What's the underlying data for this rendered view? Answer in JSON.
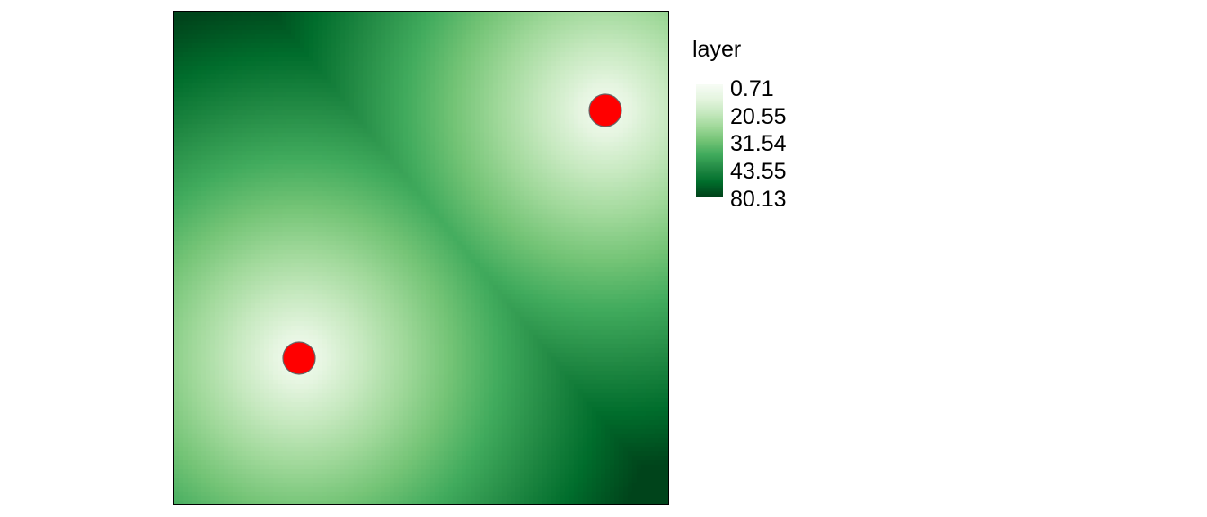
{
  "map": {
    "title": "",
    "layer_name": "layer",
    "color_scale": {
      "type": "continuous",
      "direction": "low value = light, high value = dark",
      "colors": [
        "#f7fcf5",
        "#e5f5e0",
        "#c7e9c0",
        "#a1d99b",
        "#74c476",
        "#41ab5d",
        "#238b45",
        "#006d2c",
        "#00441b"
      ]
    },
    "legend": {
      "title": "layer",
      "labels": [
        "0.71",
        "20.55",
        "31.54",
        "43.55",
        "80.13"
      ],
      "placement": "right"
    },
    "points": [
      {
        "name": "point-lower-left",
        "color": "#ff0000",
        "stroke": "#666666"
      },
      {
        "name": "point-upper-right",
        "color": "#ff0000",
        "stroke": "#666666"
      }
    ]
  }
}
